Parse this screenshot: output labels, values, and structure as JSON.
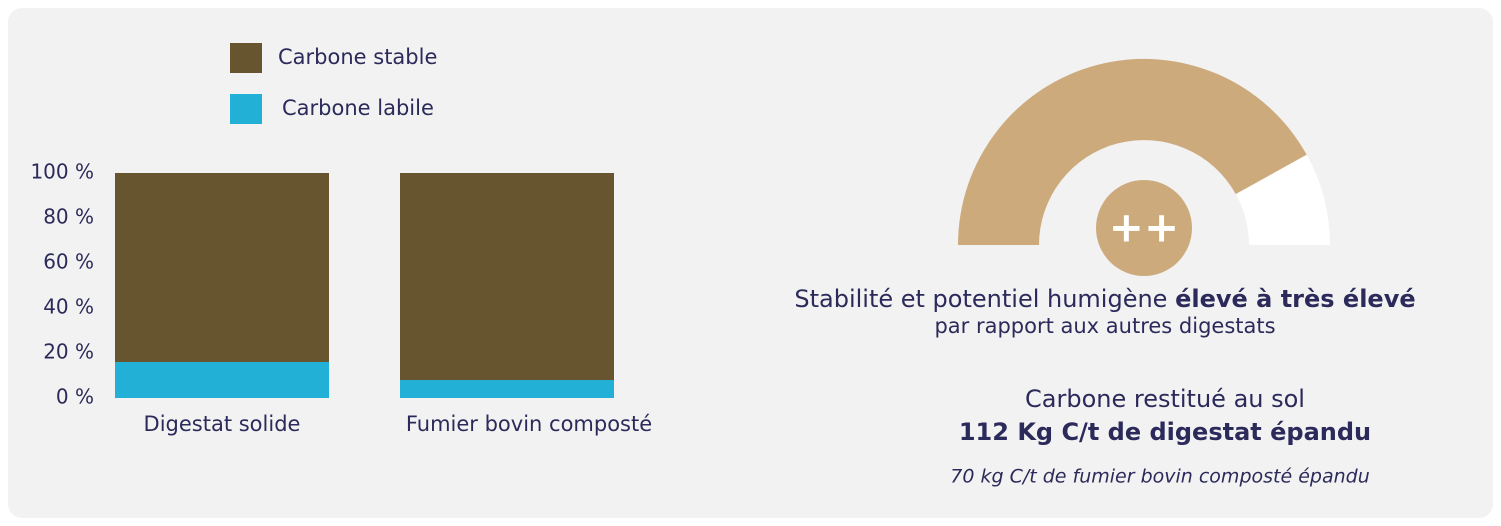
{
  "chart_data": {
    "type": "stacked_bar",
    "categories": [
      "Digestat solide",
      "Fumier bovin composté"
    ],
    "series": [
      {
        "name": "Carbone stable",
        "color": "#66552e",
        "values": [
          84,
          92
        ]
      },
      {
        "name": "Carbone labile",
        "color": "#22b0d6",
        "values": [
          16,
          8
        ]
      }
    ],
    "ylim": [
      0,
      100
    ],
    "yticks": [
      {
        "value": 0,
        "label": "0 %"
      },
      {
        "value": 20,
        "label": "20 %"
      },
      {
        "value": 40,
        "label": "40 %"
      },
      {
        "value": 60,
        "label": "60 %"
      },
      {
        "value": 80,
        "label": "80 %"
      },
      {
        "value": 100,
        "label": "100 %"
      }
    ],
    "grid": false
  },
  "gauge": {
    "label": "++"
  },
  "summary": {
    "stability_prefix": "Stabilité et potentiel humigène ",
    "stability_level": "élevé à très élevé",
    "stability_note": "par rapport aux autres digestats",
    "carbon_title": "Carbone restitué au sol",
    "carbon_value": "112 Kg C/t de digestat épandu",
    "carbon_compare": "70 kg C/t de fumier bovin composté épandu"
  }
}
